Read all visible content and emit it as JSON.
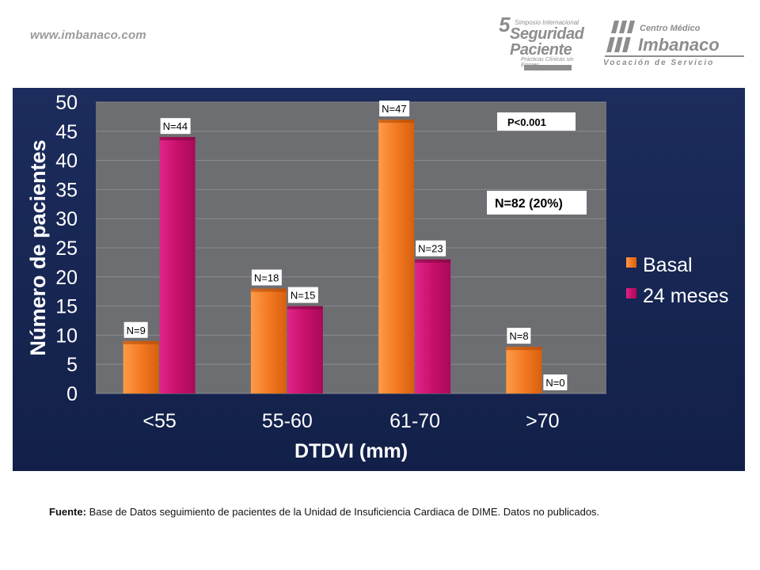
{
  "header": {
    "website": "www.imbanaco.com",
    "symposium": {
      "number": "5",
      "line1": "Simposio Internacional",
      "line2": "Seguridad",
      "line3": "Paciente",
      "line4": "Prácticas Clínicas sin Errores"
    },
    "imbanaco": {
      "line1": "Centro Médico",
      "line2": "Imbanaco",
      "tagline": "Vocación de Servicio"
    }
  },
  "chart_data": {
    "type": "bar",
    "title": "",
    "xlabel": "DTDVI (mm)",
    "ylabel": "Número de pacientes",
    "ylim": [
      0,
      50
    ],
    "yticks": [
      0,
      5,
      10,
      15,
      20,
      25,
      30,
      35,
      40,
      45,
      50
    ],
    "categories": [
      "<55",
      "55-60",
      "61-70",
      ">70"
    ],
    "series": [
      {
        "name": "Basal",
        "values": [
          9,
          18,
          47,
          8
        ],
        "labels": [
          "N=9",
          "N=18",
          "N=47",
          "N=8"
        ],
        "color": "#f37a22"
      },
      {
        "name": "24 meses",
        "values": [
          44,
          15,
          23,
          0
        ],
        "labels": [
          "N=44",
          "N=15",
          "N=23",
          "N=0"
        ],
        "color": "#c8106a"
      }
    ],
    "annotations": [
      "P<0.001",
      "N=82 (20%)"
    ],
    "legend_position": "right",
    "grid": true,
    "plot_background": "#6d6e72",
    "panel_background": "#1a2a5a"
  },
  "footnote": {
    "source_label": "Fuente:",
    "text": " Base de Datos  seguimiento de pacientes de la Unidad de  Insuficiencia Cardiaca de DIME. Datos no publicados."
  }
}
